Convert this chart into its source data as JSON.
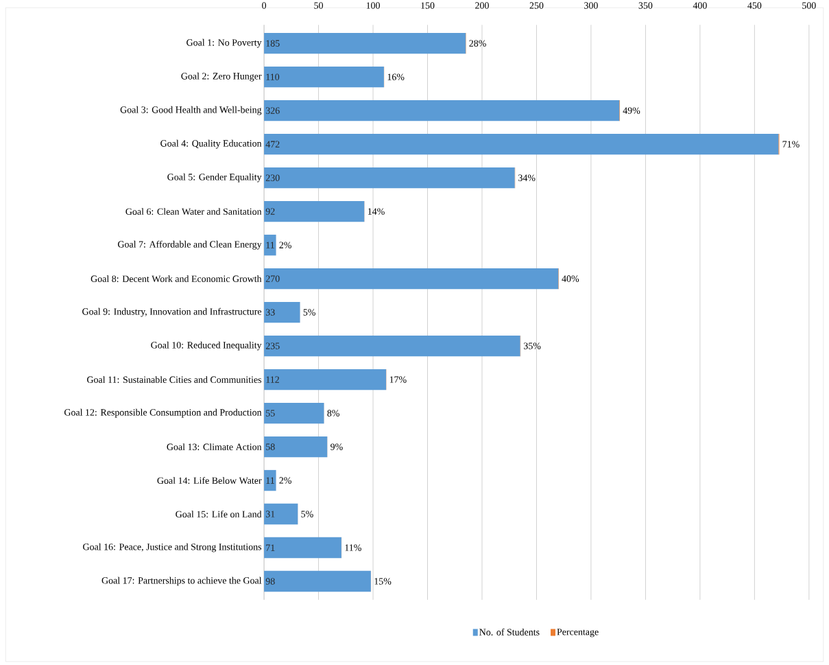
{
  "chart_data": {
    "type": "bar",
    "orientation": "horizontal",
    "stacked": true,
    "categories": [
      "Goal 1: No Poverty",
      "Goal 2: Zero Hunger",
      "Goal 3: Good Health and Well-being",
      "Goal 4: Quality Education",
      "Goal 5: Gender Equality",
      "Goal 6: Clean Water and Sanitation",
      "Goal 7: Affordable and Clean Energy",
      "Goal 8: Decent Work and Economic Growth",
      "Goal 9: Industry, Innovation and Infrastructure",
      "Goal 10: Reduced Inequality",
      "Goal 11: Sustainable Cities and Communities",
      "Goal 12: Responsible Consumption and Production",
      "Goal 13: Climate Action",
      "Goal 14: Life Below Water",
      "Goal 15: Life on Land",
      "Goal 16: Peace, Justice and Strong Institutions",
      "Goal 17: Partnerships to achieve the Goal"
    ],
    "series": [
      {
        "name": "No. of Students",
        "color": "#5b9bd5",
        "values": [
          185,
          110,
          326,
          472,
          230,
          92,
          11,
          270,
          33,
          235,
          112,
          55,
          58,
          11,
          31,
          71,
          98
        ],
        "value_labels": [
          "185",
          "110",
          "326",
          "472",
          "230",
          "92",
          "11",
          "270",
          "33",
          "235",
          "112",
          "55",
          "58",
          "11",
          "31",
          "71",
          "98"
        ]
      },
      {
        "name": "Percentage",
        "color": "#ed7d31",
        "values": [
          0.28,
          0.16,
          0.49,
          0.71,
          0.34,
          0.14,
          0.02,
          0.4,
          0.05,
          0.35,
          0.17,
          0.08,
          0.09,
          0.02,
          0.05,
          0.11,
          0.15
        ],
        "value_labels": [
          "28%",
          "16%",
          "49%",
          "71%",
          "34%",
          "14%",
          "2%",
          "40%",
          "5%",
          "35%",
          "17%",
          "8%",
          "9%",
          "2%",
          "5%",
          "11%",
          "15%"
        ]
      }
    ],
    "xlim": [
      0,
      500
    ],
    "xticks": [
      0,
      50,
      100,
      150,
      200,
      250,
      300,
      350,
      400,
      450,
      500
    ],
    "grid": "x",
    "legend": "bottom"
  }
}
